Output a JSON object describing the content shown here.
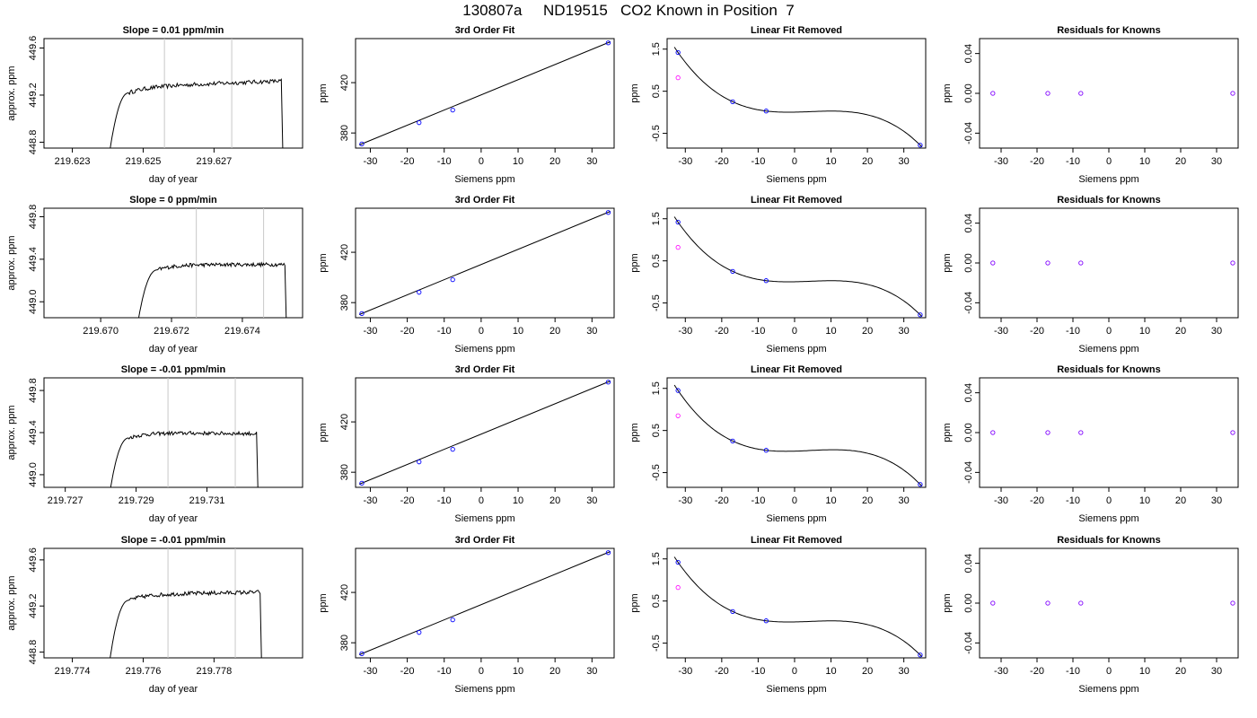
{
  "page_title": "130807a     ND19515   CO2 Known in Position  7",
  "colors": {
    "line": "#000000",
    "vline": "#c8c8c8",
    "marker_main": "#0000ff",
    "marker_alt": "#ff00ff",
    "marker_resid": "#8000ff"
  },
  "chart_data": [
    {
      "type": "line",
      "row": 1,
      "col": 1,
      "title": "Slope =  0.01  ppm/min",
      "xlabel": "day of year",
      "ylabel": "approx. ppm",
      "xlim": [
        219.6222,
        219.6295
      ],
      "ylim": [
        448.75,
        449.68
      ],
      "xticks": [
        219.623,
        219.625,
        219.627
      ],
      "xtick_labels": [
        "219.623",
        "219.625",
        "219.627"
      ],
      "yticks": [
        448.8,
        449.2,
        449.6
      ],
      "ytick_labels": [
        "448.8",
        "449.2",
        "449.6"
      ],
      "vlines": [
        219.6256,
        219.6275
      ],
      "trace": {
        "start": 219.624,
        "rise_end": 219.6246,
        "end": 219.6289,
        "plateau": 449.27,
        "drift": 0.05,
        "low": 448.6
      }
    },
    {
      "type": "scatter",
      "row": 1,
      "col": 2,
      "title": "3rd Order Fit",
      "xlabel": "Siemens ppm",
      "ylabel": "ppm",
      "xlim": [
        -34,
        36
      ],
      "ylim": [
        368,
        455
      ],
      "xticks": [
        -30,
        -20,
        -10,
        0,
        10,
        20,
        30
      ],
      "xtick_labels": [
        "-30",
        "-20",
        "-10",
        "0",
        "10",
        "20",
        "30"
      ],
      "yticks": [
        380,
        420
      ],
      "ytick_labels": [
        "380",
        "420"
      ],
      "points_x": [
        -32.3,
        -16.8,
        -7.7,
        34.4
      ],
      "points_y": [
        371.3,
        388.2,
        398.2,
        451.6
      ],
      "fit": {
        "x0": -33,
        "x1": 35,
        "y0": 370.5,
        "y1": 452.5
      }
    },
    {
      "type": "scatter",
      "row": 1,
      "col": 3,
      "title": "Linear Fit Removed",
      "xlabel": "Siemens ppm",
      "ylabel": "ppm",
      "xlim": [
        -35,
        36
      ],
      "ylim": [
        -0.85,
        1.75
      ],
      "xticks": [
        -30,
        -20,
        -10,
        0,
        10,
        20,
        30
      ],
      "xtick_labels": [
        "-30",
        "-20",
        "-10",
        "0",
        "10",
        "20",
        "30"
      ],
      "yticks": [
        -0.5,
        0.5,
        1.5
      ],
      "ytick_labels": [
        "-0.5",
        "0.5",
        "1.5"
      ],
      "points_x": [
        -32,
        -17,
        -7.8,
        34.5
      ],
      "points_y": [
        1.42,
        0.25,
        0.03,
        -0.78
      ],
      "alt_points_x": [
        -32
      ],
      "alt_points_y": [
        0.82
      ],
      "curve": [
        -32,
        -17,
        -7.8,
        34.5,
        1.42,
        0.25,
        0.03,
        -0.78
      ]
    },
    {
      "type": "scatter",
      "row": 1,
      "col": 4,
      "title": "Residuals for Knowns",
      "xlabel": "Siemens ppm",
      "ylabel": "ppm",
      "xlim": [
        -36,
        36
      ],
      "ylim": [
        -0.055,
        0.055
      ],
      "xticks": [
        -30,
        -20,
        -10,
        0,
        10,
        20,
        30
      ],
      "xtick_labels": [
        "-30",
        "-20",
        "-10",
        "0",
        "10",
        "20",
        "30"
      ],
      "yticks": [
        -0.04,
        0.0,
        0.04
      ],
      "ytick_labels": [
        "-0.04",
        "0.00",
        "0.04"
      ],
      "points_x": [
        -32.3,
        -17,
        -7.8,
        34.5
      ],
      "points_y": [
        0,
        0,
        0,
        0
      ]
    },
    {
      "type": "line",
      "row": 2,
      "col": 1,
      "title": "Slope =  0  ppm/min",
      "xlabel": "day of year",
      "ylabel": "approx. ppm",
      "xlim": [
        219.6684,
        219.6757
      ],
      "ylim": [
        448.85,
        449.88
      ],
      "xticks": [
        219.67,
        219.672,
        219.674
      ],
      "xtick_labels": [
        "219.670",
        "219.672",
        "219.674"
      ],
      "yticks": [
        449.0,
        449.4,
        449.8
      ],
      "ytick_labels": [
        "449.0",
        "449.4",
        "449.8"
      ],
      "vlines": [
        219.6727,
        219.6746
      ],
      "trace": {
        "start": 219.671,
        "rise_end": 219.6716,
        "end": 219.6752,
        "plateau": 449.35,
        "drift": 0.0,
        "low": 448.7
      }
    },
    {
      "type": "scatter",
      "row": 2,
      "col": 2,
      "title": "3rd Order Fit",
      "xlabel": "Siemens ppm",
      "ylabel": "ppm",
      "xlim": [
        -34,
        36
      ],
      "ylim": [
        368,
        455
      ],
      "xticks": [
        -30,
        -20,
        -10,
        0,
        10,
        20,
        30
      ],
      "xtick_labels": [
        "-30",
        "-20",
        "-10",
        "0",
        "10",
        "20",
        "30"
      ],
      "yticks": [
        380,
        420
      ],
      "ytick_labels": [
        "380",
        "420"
      ],
      "points_x": [
        -32.3,
        -16.8,
        -7.7,
        34.4
      ],
      "points_y": [
        371.3,
        388.2,
        398.2,
        451.6
      ],
      "fit": {
        "x0": -33,
        "x1": 35,
        "y0": 370.5,
        "y1": 452.5
      }
    },
    {
      "type": "scatter",
      "row": 2,
      "col": 3,
      "title": "Linear Fit Removed",
      "xlabel": "Siemens ppm",
      "ylabel": "ppm",
      "xlim": [
        -35,
        36
      ],
      "ylim": [
        -0.85,
        1.75
      ],
      "xticks": [
        -30,
        -20,
        -10,
        0,
        10,
        20,
        30
      ],
      "xtick_labels": [
        "-30",
        "-20",
        "-10",
        "0",
        "10",
        "20",
        "30"
      ],
      "yticks": [
        -0.5,
        0.5,
        1.5
      ],
      "ytick_labels": [
        "-0.5",
        "0.5",
        "1.5"
      ],
      "points_x": [
        -32,
        -17,
        -7.8,
        34.5
      ],
      "points_y": [
        1.42,
        0.25,
        0.03,
        -0.78
      ],
      "alt_points_x": [
        -32
      ],
      "alt_points_y": [
        0.82
      ],
      "curve": [
        -32,
        -17,
        -7.8,
        34.5,
        1.42,
        0.25,
        0.03,
        -0.78
      ]
    },
    {
      "type": "scatter",
      "row": 2,
      "col": 4,
      "title": "Residuals for Knowns",
      "xlabel": "Siemens ppm",
      "ylabel": "ppm",
      "xlim": [
        -36,
        36
      ],
      "ylim": [
        -0.055,
        0.055
      ],
      "xticks": [
        -30,
        -20,
        -10,
        0,
        10,
        20,
        30
      ],
      "xtick_labels": [
        "-30",
        "-20",
        "-10",
        "0",
        "10",
        "20",
        "30"
      ],
      "yticks": [
        -0.04,
        0.0,
        0.04
      ],
      "ytick_labels": [
        "-0.04",
        "0.00",
        "0.04"
      ],
      "points_x": [
        -32.3,
        -17,
        -7.8,
        34.5
      ],
      "points_y": [
        0,
        0,
        0,
        0
      ]
    },
    {
      "type": "line",
      "row": 3,
      "col": 1,
      "title": "Slope =  -0.01  ppm/min",
      "xlabel": "day of year",
      "ylabel": "approx. ppm",
      "xlim": [
        219.7264,
        219.7337
      ],
      "ylim": [
        448.88,
        449.92
      ],
      "xticks": [
        219.727,
        219.729,
        219.731
      ],
      "xtick_labels": [
        "219.727",
        "219.729",
        "219.731"
      ],
      "yticks": [
        449.0,
        449.4,
        449.8
      ],
      "ytick_labels": [
        "449.0",
        "449.4",
        "449.8"
      ],
      "vlines": [
        219.7299,
        219.7318
      ],
      "trace": {
        "start": 219.7282,
        "rise_end": 219.7288,
        "end": 219.7324,
        "plateau": 449.4,
        "drift": -0.01,
        "low": 448.7
      }
    },
    {
      "type": "scatter",
      "row": 3,
      "col": 2,
      "title": "3rd Order Fit",
      "xlabel": "Siemens ppm",
      "ylabel": "ppm",
      "xlim": [
        -34,
        36
      ],
      "ylim": [
        368,
        455
      ],
      "xticks": [
        -30,
        -20,
        -10,
        0,
        10,
        20,
        30
      ],
      "xtick_labels": [
        "-30",
        "-20",
        "-10",
        "0",
        "10",
        "20",
        "30"
      ],
      "yticks": [
        380,
        420
      ],
      "ytick_labels": [
        "380",
        "420"
      ],
      "points_x": [
        -32.3,
        -16.8,
        -7.7,
        34.4
      ],
      "points_y": [
        371.3,
        388.2,
        398.2,
        451.6
      ],
      "fit": {
        "x0": -33,
        "x1": 35,
        "y0": 370.5,
        "y1": 452.5
      }
    },
    {
      "type": "scatter",
      "row": 3,
      "col": 3,
      "title": "Linear Fit Removed",
      "xlabel": "Siemens ppm",
      "ylabel": "ppm",
      "xlim": [
        -35,
        36
      ],
      "ylim": [
        -0.85,
        1.75
      ],
      "xticks": [
        -30,
        -20,
        -10,
        0,
        10,
        20,
        30
      ],
      "xtick_labels": [
        "-30",
        "-20",
        "-10",
        "0",
        "10",
        "20",
        "30"
      ],
      "yticks": [
        -0.5,
        0.5,
        1.5
      ],
      "ytick_labels": [
        "-0.5",
        "0.5",
        "1.5"
      ],
      "points_x": [
        -32,
        -17,
        -7.8,
        34.5
      ],
      "points_y": [
        1.45,
        0.25,
        0.03,
        -0.78
      ],
      "alt_points_x": [
        -32
      ],
      "alt_points_y": [
        0.85
      ],
      "curve": [
        -32,
        -17,
        -7.8,
        34.5,
        1.45,
        0.25,
        0.03,
        -0.78
      ]
    },
    {
      "type": "scatter",
      "row": 3,
      "col": 4,
      "title": "Residuals for Knowns",
      "xlabel": "Siemens ppm",
      "ylabel": "ppm",
      "xlim": [
        -36,
        36
      ],
      "ylim": [
        -0.055,
        0.055
      ],
      "xticks": [
        -30,
        -20,
        -10,
        0,
        10,
        20,
        30
      ],
      "xtick_labels": [
        "-30",
        "-20",
        "-10",
        "0",
        "10",
        "20",
        "30"
      ],
      "yticks": [
        -0.04,
        0.0,
        0.04
      ],
      "ytick_labels": [
        "-0.04",
        "0.00",
        "0.04"
      ],
      "points_x": [
        -32.3,
        -17,
        -7.8,
        34.5
      ],
      "points_y": [
        0,
        0,
        0,
        0
      ]
    },
    {
      "type": "line",
      "row": 4,
      "col": 1,
      "title": "Slope =  -0.01  ppm/min",
      "xlabel": "day of year",
      "ylabel": "approx. ppm",
      "xlim": [
        219.7732,
        219.7805
      ],
      "ylim": [
        448.75,
        449.7
      ],
      "xticks": [
        219.774,
        219.776,
        219.778
      ],
      "xtick_labels": [
        "219.774",
        "219.776",
        "219.778"
      ],
      "yticks": [
        448.8,
        449.2,
        449.6
      ],
      "ytick_labels": [
        "448.8",
        "449.2",
        "449.6"
      ],
      "vlines": [
        219.7767,
        219.7786
      ],
      "trace": {
        "start": 219.775,
        "rise_end": 219.7756,
        "end": 219.7793,
        "plateau": 449.3,
        "drift": 0.02,
        "low": 448.6
      }
    },
    {
      "type": "scatter",
      "row": 4,
      "col": 2,
      "title": "3rd Order Fit",
      "xlabel": "Siemens ppm",
      "ylabel": "ppm",
      "xlim": [
        -34,
        36
      ],
      "ylim": [
        368,
        455
      ],
      "xticks": [
        -30,
        -20,
        -10,
        0,
        10,
        20,
        30
      ],
      "xtick_labels": [
        "-30",
        "-20",
        "-10",
        "0",
        "10",
        "20",
        "30"
      ],
      "yticks": [
        380,
        420
      ],
      "ytick_labels": [
        "380",
        "420"
      ],
      "points_x": [
        -32.3,
        -16.8,
        -7.7,
        34.4
      ],
      "points_y": [
        371.3,
        388.2,
        398.2,
        451.6
      ],
      "fit": {
        "x0": -33,
        "x1": 35,
        "y0": 370.5,
        "y1": 452.5
      }
    },
    {
      "type": "scatter",
      "row": 4,
      "col": 3,
      "title": "Linear Fit Removed",
      "xlabel": "Siemens ppm",
      "ylabel": "ppm",
      "xlim": [
        -35,
        36
      ],
      "ylim": [
        -0.85,
        1.75
      ],
      "xticks": [
        -30,
        -20,
        -10,
        0,
        10,
        20,
        30
      ],
      "xtick_labels": [
        "-30",
        "-20",
        "-10",
        "0",
        "10",
        "20",
        "30"
      ],
      "yticks": [
        -0.5,
        0.5,
        1.5
      ],
      "ytick_labels": [
        "-0.5",
        "0.5",
        "1.5"
      ],
      "points_x": [
        -32,
        -17,
        -7.8,
        34.5
      ],
      "points_y": [
        1.42,
        0.25,
        0.03,
        -0.78
      ],
      "alt_points_x": [
        -32
      ],
      "alt_points_y": [
        0.82
      ],
      "curve": [
        -32,
        -17,
        -7.8,
        34.5,
        1.42,
        0.25,
        0.03,
        -0.78
      ]
    },
    {
      "type": "scatter",
      "row": 4,
      "col": 4,
      "title": "Residuals for Knowns",
      "xlabel": "Siemens ppm",
      "ylabel": "ppm",
      "xlim": [
        -36,
        36
      ],
      "ylim": [
        -0.055,
        0.055
      ],
      "xticks": [
        -30,
        -20,
        -10,
        0,
        10,
        20,
        30
      ],
      "xtick_labels": [
        "-30",
        "-20",
        "-10",
        "0",
        "10",
        "20",
        "30"
      ],
      "yticks": [
        -0.04,
        0.0,
        0.04
      ],
      "ytick_labels": [
        "-0.04",
        "0.00",
        "0.04"
      ],
      "points_x": [
        -32.3,
        -17,
        -7.8,
        34.5
      ],
      "points_y": [
        0,
        0,
        0,
        0
      ]
    }
  ]
}
